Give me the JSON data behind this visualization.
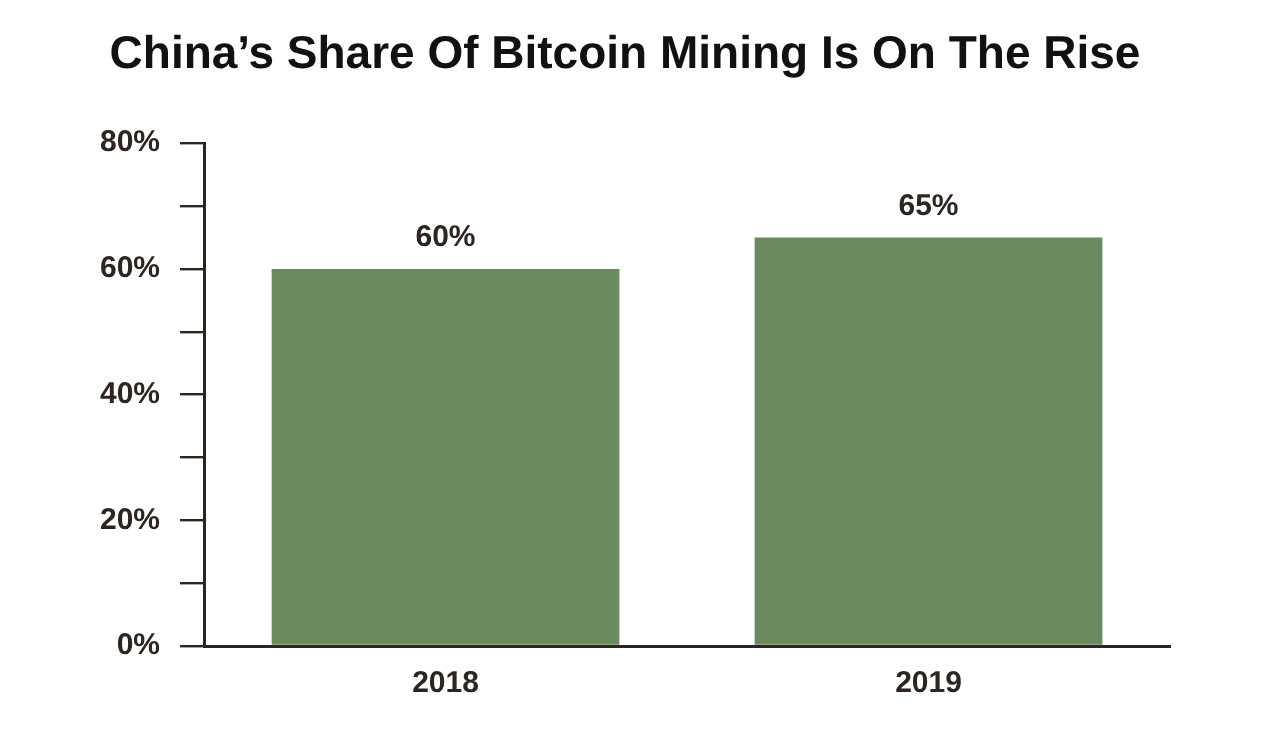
{
  "chart_data": {
    "type": "bar",
    "title": "China’s Share Of Bitcoin Mining Is On The Rise",
    "categories": [
      "2018",
      "2019"
    ],
    "values": [
      60,
      65
    ],
    "color": "#6a8a5f",
    "value_labels": [
      "60%",
      "65%"
    ],
    "ylim": [
      0,
      80
    ],
    "yticks": [
      {
        "value": 0,
        "label": "0%"
      },
      {
        "value": 10,
        "label": null
      },
      {
        "value": 20,
        "label": "20%"
      },
      {
        "value": 30,
        "label": null
      },
      {
        "value": 40,
        "label": "40%"
      },
      {
        "value": 50,
        "label": null
      },
      {
        "value": 60,
        "label": "60%"
      },
      {
        "value": 70,
        "label": null
      },
      {
        "value": 80,
        "label": "80%"
      }
    ],
    "grid": false,
    "legend": false
  }
}
